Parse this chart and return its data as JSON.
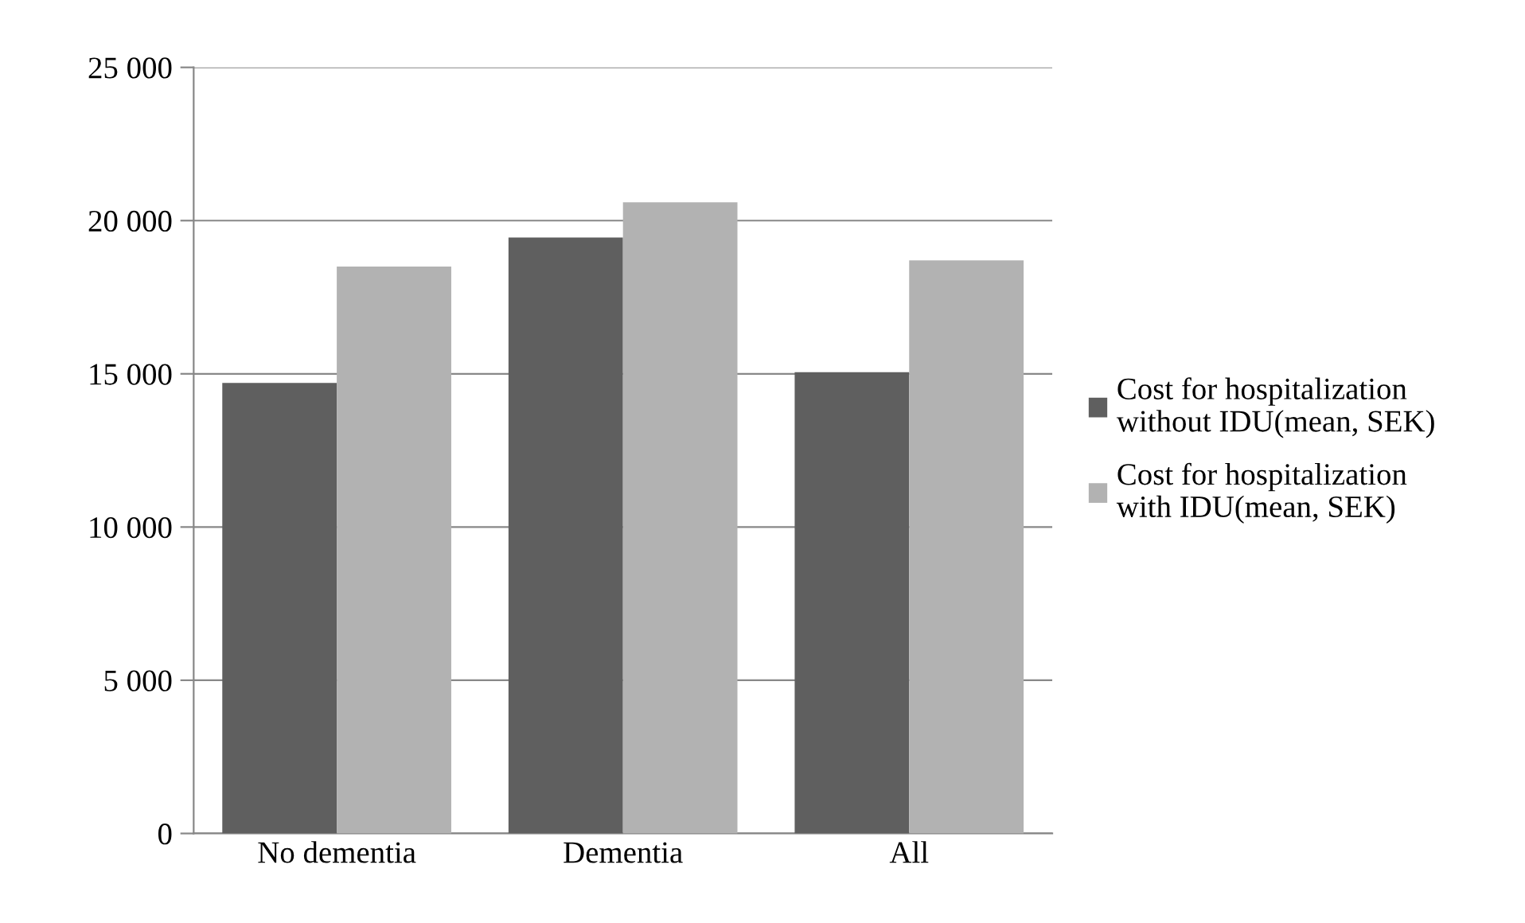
{
  "chart_data": {
    "type": "bar",
    "categories": [
      "No dementia",
      "Dementia",
      "All"
    ],
    "series": [
      {
        "name": "Cost for hospitalization without IDU(mean, SEK)",
        "color": "#5f5f5f",
        "values": [
          14700,
          19450,
          15050
        ]
      },
      {
        "name": "Cost for hospitalization with IDU(mean, SEK)",
        "color": "#b2b2b2",
        "values": [
          18500,
          20600,
          18700
        ]
      }
    ],
    "ylim": [
      0,
      25000
    ],
    "yticks": [
      {
        "value": 0,
        "label": "0"
      },
      {
        "value": 5000,
        "label": "5 000"
      },
      {
        "value": 10000,
        "label": "10 000"
      },
      {
        "value": 15000,
        "label": "15 000"
      },
      {
        "value": 20000,
        "label": "20 000"
      },
      {
        "value": 25000,
        "label": "25 000"
      }
    ],
    "grid": "y",
    "legend": "right"
  }
}
